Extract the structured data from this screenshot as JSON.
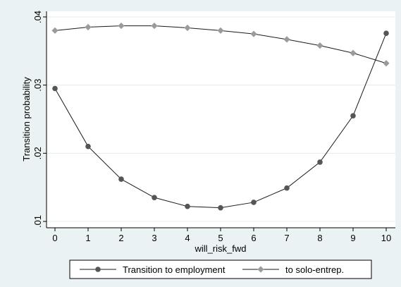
{
  "chart_data": {
    "type": "line",
    "title": "",
    "xlabel": "will_risk_fwd",
    "ylabel": "Transition probability",
    "x": [
      0,
      1,
      2,
      3,
      4,
      5,
      6,
      7,
      8,
      9,
      10
    ],
    "xlim": [
      0,
      10
    ],
    "ylim": [
      0.01,
      0.04
    ],
    "x_ticks": [
      0,
      1,
      2,
      3,
      4,
      5,
      6,
      7,
      8,
      9,
      10
    ],
    "y_ticks": [
      {
        "value": 0.01,
        "label": ".01"
      },
      {
        "value": 0.02,
        "label": ".02"
      },
      {
        "value": 0.03,
        "label": ".03"
      },
      {
        "value": 0.04,
        "label": ".04"
      }
    ],
    "grid": true,
    "legend_position": "bottom",
    "series": [
      {
        "name": "Transition to employment",
        "color": "#555555",
        "marker": "circle",
        "values": [
          0.0295,
          0.021,
          0.0162,
          0.0135,
          0.0122,
          0.012,
          0.0128,
          0.0149,
          0.0187,
          0.0255,
          0.0376
        ]
      },
      {
        "name": "to solo-entrep.",
        "color": "#9b9b9b",
        "marker": "diamond",
        "values": [
          0.038,
          0.0385,
          0.0387,
          0.0387,
          0.0384,
          0.038,
          0.0375,
          0.0367,
          0.0358,
          0.0347,
          0.0332
        ]
      }
    ]
  }
}
